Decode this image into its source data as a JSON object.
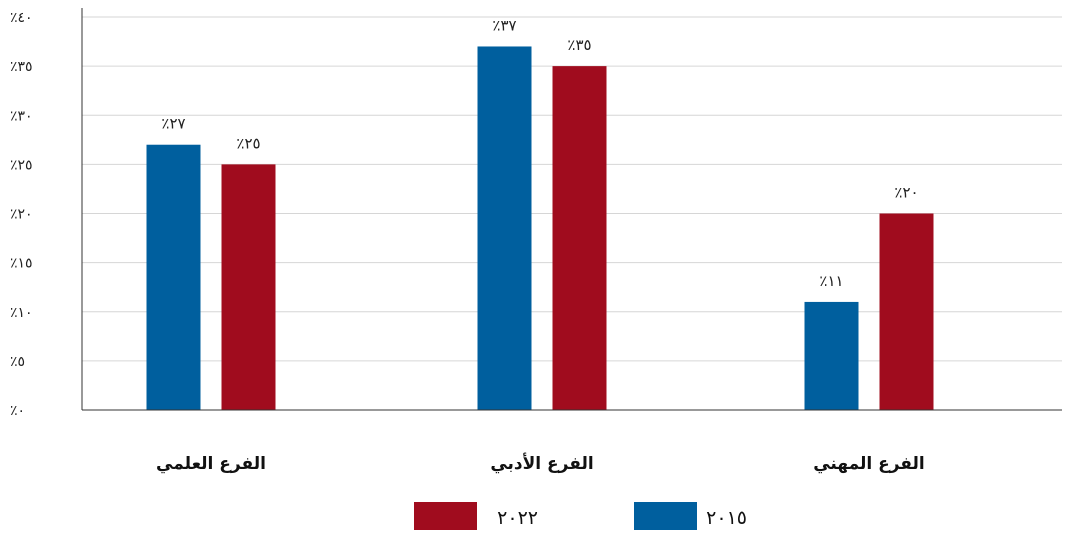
{
  "chart_data": {
    "type": "bar",
    "title": "",
    "xlabel": "",
    "ylabel": "",
    "ylim": [
      0,
      40
    ],
    "yticks": [
      0,
      5,
      10,
      15,
      20,
      25,
      30,
      35,
      40
    ],
    "ytick_labels": [
      "٪٠",
      "٪٥",
      "٪١٠",
      "٪١٥",
      "٪٢٠",
      "٪٢٥",
      "٪٣٠",
      "٪٣٥",
      "٪٤٠"
    ],
    "grid": true,
    "legend_position": "bottom",
    "categories": [
      "الفرع العلمي",
      "الفرع الأدبي",
      "الفرع المهني"
    ],
    "series": [
      {
        "name": "٢٠١٥",
        "color": "#005f9e",
        "values": [
          27,
          37,
          11
        ],
        "labels": [
          "٪٢٧",
          "٪٣٧",
          "٪١١"
        ]
      },
      {
        "name": "٢٠٢٢",
        "color": "#a00c1e",
        "values": [
          25,
          35,
          20
        ],
        "labels": [
          "٪٢٥",
          "٪٣٥",
          "٪٢٠"
        ]
      }
    ]
  }
}
